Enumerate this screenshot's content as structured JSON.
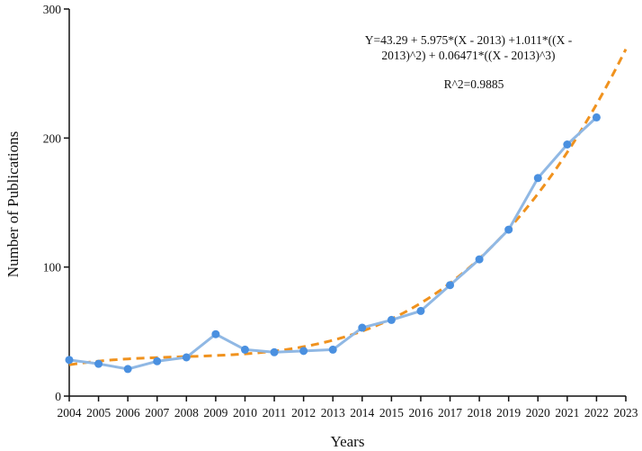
{
  "chart_data": {
    "type": "line",
    "xlabel": "Years",
    "ylabel": "Number of Publications",
    "x_categories": [
      "2004",
      "2005",
      "2006",
      "2007",
      "2008",
      "2009",
      "2010",
      "2011",
      "2012",
      "2013",
      "2014",
      "2015",
      "2016",
      "2017",
      "2018",
      "2019",
      "2020",
      "2021",
      "2022",
      "2023"
    ],
    "xlim": [
      2004,
      2023
    ],
    "ylim": [
      0,
      300
    ],
    "y_ticks": [
      0,
      100,
      200,
      300
    ],
    "grid": false,
    "series": [
      {
        "type": "line",
        "style": "solid-with-markers",
        "color": "#90b8e4",
        "marker_color": "#4a90e0",
        "x": [
          2004,
          2005,
          2006,
          2007,
          2008,
          2009,
          2010,
          2011,
          2012,
          2013,
          2014,
          2015,
          2016,
          2017,
          2018,
          2019,
          2020,
          2021,
          2022
        ],
        "y": [
          28,
          25,
          21,
          27,
          30,
          48,
          36,
          34,
          35,
          36,
          53,
          59,
          66,
          86,
          106,
          129,
          169,
          195,
          216
        ]
      },
      {
        "type": "fit",
        "style": "dashed",
        "color": "#f0921e",
        "model": "cubic",
        "center": 2013,
        "coefficients": [
          43.29,
          5.975,
          1.011,
          0.06471
        ],
        "x_range": [
          2004,
          2023
        ]
      }
    ],
    "annotations": [
      {
        "text": "Y=43.29 + 5.975*(X - 2013) +1.011*((X -"
      },
      {
        "text": "2013)^2) + 0.06471*((X - 2013)^3)"
      },
      {
        "text": "R^2=0.9885"
      }
    ]
  }
}
